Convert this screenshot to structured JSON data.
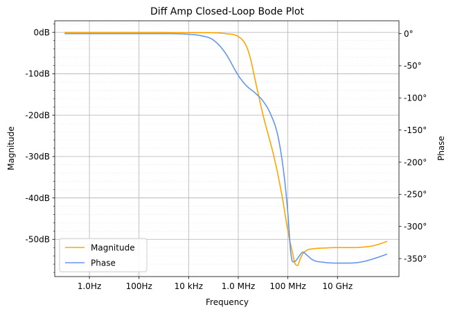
{
  "chart_data": {
    "type": "line",
    "title": "Diff Amp Closed-Loop Bode Plot",
    "xlabel": "Frequency",
    "ylabel_left": "Magnitude",
    "ylabel_right": "Phase",
    "x_scale": "log",
    "xlim": [
      0.04,
      3000000000000
    ],
    "x_ticks": [
      {
        "value": 1,
        "label": "1.0Hz"
      },
      {
        "value": 100,
        "label": "100Hz"
      },
      {
        "value": 10000,
        "label": "10 kHz"
      },
      {
        "value": 1000000,
        "label": "1.0 MHz"
      },
      {
        "value": 100000000,
        "label": "100 MHz"
      },
      {
        "value": 10000000000,
        "label": "10 GHz"
      }
    ],
    "ylim_left": [
      -59.0,
      2.8
    ],
    "y_ticks_left": [
      {
        "value": 0,
        "label": "0dB"
      },
      {
        "value": -10,
        "label": "-10dB"
      },
      {
        "value": -20,
        "label": "-20dB"
      },
      {
        "value": -30,
        "label": "-30dB"
      },
      {
        "value": -40,
        "label": "-40dB"
      },
      {
        "value": -50,
        "label": "-50dB"
      }
    ],
    "ylim_right": [
      -378,
      20
    ],
    "y_ticks_right": [
      {
        "value": 0,
        "label": "0°"
      },
      {
        "value": -50,
        "label": "-50°"
      },
      {
        "value": -100,
        "label": "-100°"
      },
      {
        "value": -150,
        "label": "-150°"
      },
      {
        "value": -200,
        "label": "-200°"
      },
      {
        "value": -250,
        "label": "-250°"
      },
      {
        "value": -300,
        "label": "-300°"
      },
      {
        "value": -350,
        "label": "-350°"
      }
    ],
    "grid": true,
    "legend_position": "lower-left",
    "series": [
      {
        "name": "Magnitude",
        "axis": "left",
        "color": "#ffa500",
        "x": [
          0.1,
          1,
          10,
          100,
          1000,
          10000,
          100000,
          300000,
          1000000,
          2000000,
          3000000,
          5000000,
          10000000,
          30000000,
          60000000,
          100000000,
          150000000,
          200000000,
          250000000,
          300000000,
          400000000,
          600000000,
          1000000000,
          3000000000,
          10000000000,
          30000000000,
          100000000000,
          300000000000,
          1000000000000
        ],
        "values": [
          0,
          0,
          0,
          0,
          0,
          -0.05,
          -0.1,
          -0.3,
          -1.0,
          -3.0,
          -6.0,
          -12.0,
          -20.0,
          -31.0,
          -40.0,
          -48.0,
          -53.0,
          -56.0,
          -56.3,
          -55.0,
          -53.5,
          -52.6,
          -52.3,
          -52.1,
          -52.0,
          -52.0,
          -51.9,
          -51.5,
          -50.5
        ]
      },
      {
        "name": "Phase",
        "axis": "right",
        "color": "#6495ed",
        "x": [
          0.1,
          1,
          10,
          100,
          1000,
          10000,
          30000,
          100000,
          300000,
          1000000,
          2000000,
          5000000,
          10000000,
          20000000,
          40000000,
          70000000,
          100000000,
          130000000,
          160000000,
          200000000,
          300000000,
          400000000,
          600000000,
          1000000000,
          3000000000,
          10000000000,
          30000000000,
          100000000000,
          300000000000,
          1000000000000
        ],
        "values": [
          0,
          0,
          0,
          0,
          0,
          -1,
          -3,
          -10,
          -30,
          -65,
          -80,
          -93,
          -105,
          -125,
          -160,
          -220,
          -280,
          -340,
          -355,
          -354,
          -345,
          -340,
          -345,
          -352,
          -356,
          -357,
          -357,
          -355,
          -350,
          -343
        ]
      }
    ]
  }
}
